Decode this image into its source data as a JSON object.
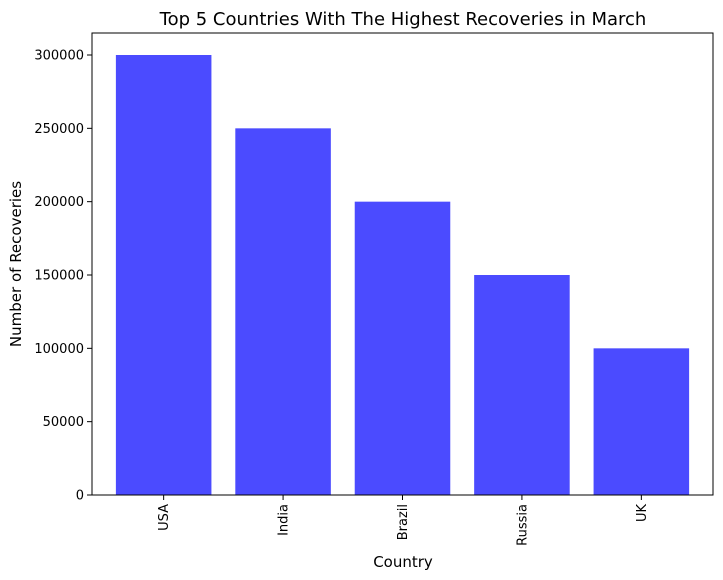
{
  "chart_data": {
    "type": "bar",
    "title": "Top 5 Countries With The Highest Recoveries in March",
    "xlabel": "Country",
    "ylabel": "Number of Recoveries",
    "categories": [
      "USA",
      "India",
      "Brazil",
      "Russia",
      "UK"
    ],
    "values": [
      300000,
      250000,
      200000,
      150000,
      100000
    ],
    "ylim": [
      0,
      315000
    ],
    "yticks": [
      "0",
      "50000",
      "100000",
      "150000",
      "200000",
      "250000",
      "300000"
    ],
    "grid": false,
    "bar_color": "#4b4bff"
  }
}
